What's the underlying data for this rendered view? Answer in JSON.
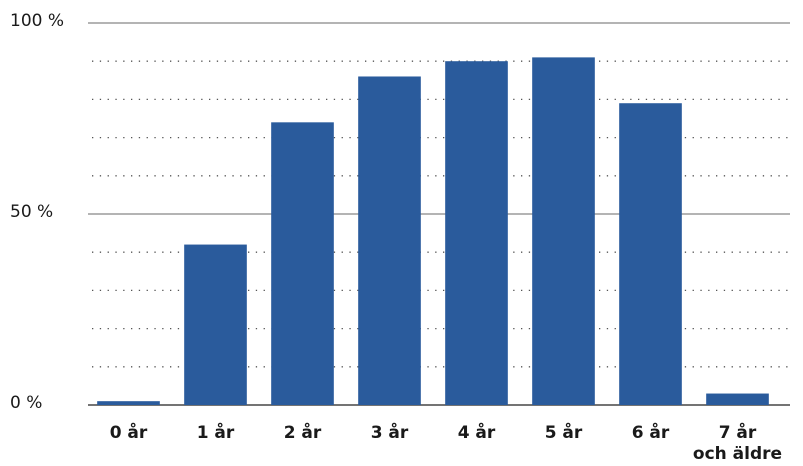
{
  "chart_data": {
    "type": "bar",
    "categories": [
      "0 år",
      "1 år",
      "2 år",
      "3 år",
      "4 år",
      "5 år",
      "6 år",
      "7 år\noch äldre"
    ],
    "values": [
      1,
      42,
      74,
      86,
      90,
      91,
      79,
      3
    ],
    "color": "#2a5b9c",
    "ylim": [
      0,
      100
    ],
    "yticks": [
      {
        "value": 0,
        "label": "0 %"
      },
      {
        "value": 50,
        "label": "50 %"
      },
      {
        "value": 100,
        "label": "100 %"
      }
    ],
    "minor_yticks": [
      10,
      20,
      30,
      40,
      60,
      70,
      80,
      90
    ],
    "grid": true
  }
}
